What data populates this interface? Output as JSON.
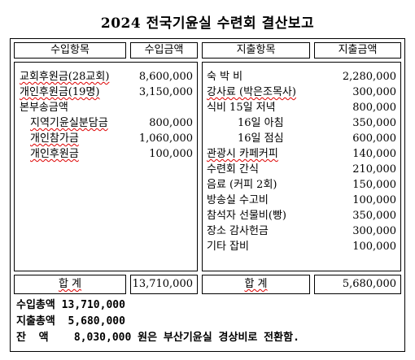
{
  "title": "2024 전국기윤실 수련회 결산보고",
  "headers": {
    "income_item": "수입항목",
    "income_amount": "수입금액",
    "expense_item": "지출항목",
    "expense_amount": "지출금액"
  },
  "income": [
    {
      "label": "교회후원금(28교회)",
      "amount": "8,600,000"
    },
    {
      "label": "개인후원금(19명)",
      "amount": "3,150,000"
    },
    {
      "label": "본부송금액",
      "amount": ""
    },
    {
      "label": "지역기윤실분담금",
      "amount": "800,000"
    },
    {
      "label": "개인참가금",
      "amount": "1,060,000"
    },
    {
      "label": "개인후원금",
      "amount": "100,000"
    }
  ],
  "expense": [
    {
      "label": "숙 박 비",
      "amount": "2,280,000"
    },
    {
      "label": "강사료 (박은조목사)",
      "amount": "300,000"
    },
    {
      "label": "식비 15일 저녁",
      "amount": "800,000"
    },
    {
      "label": "16일 아침",
      "amount": "350,000"
    },
    {
      "label": "16일 점심",
      "amount": "600,000"
    },
    {
      "label": "관광시 카페커피",
      "amount": "140,000"
    },
    {
      "label": "수련회 간식",
      "amount": "210,000"
    },
    {
      "label": "음료 (커피 2회)",
      "amount": "150,000"
    },
    {
      "label": "방송실 수고비",
      "amount": "100,000"
    },
    {
      "label": "참석자 선물비(빵)",
      "amount": "350,000"
    },
    {
      "label": "장소 감사헌금",
      "amount": "300,000"
    },
    {
      "label": "기타 잡비",
      "amount": "100,000"
    }
  ],
  "totals": {
    "label_income": "합 계",
    "income_total": "13,710,000",
    "label_expense": "합 계",
    "expense_total": "5,680,000"
  },
  "summary": {
    "income_line": "수입총액 13,710,000",
    "expense_line": "지출총액  5,680,000",
    "balance_line": "잔  액    8,030,000 원은 부산기윤실 경상비로 전환함."
  }
}
